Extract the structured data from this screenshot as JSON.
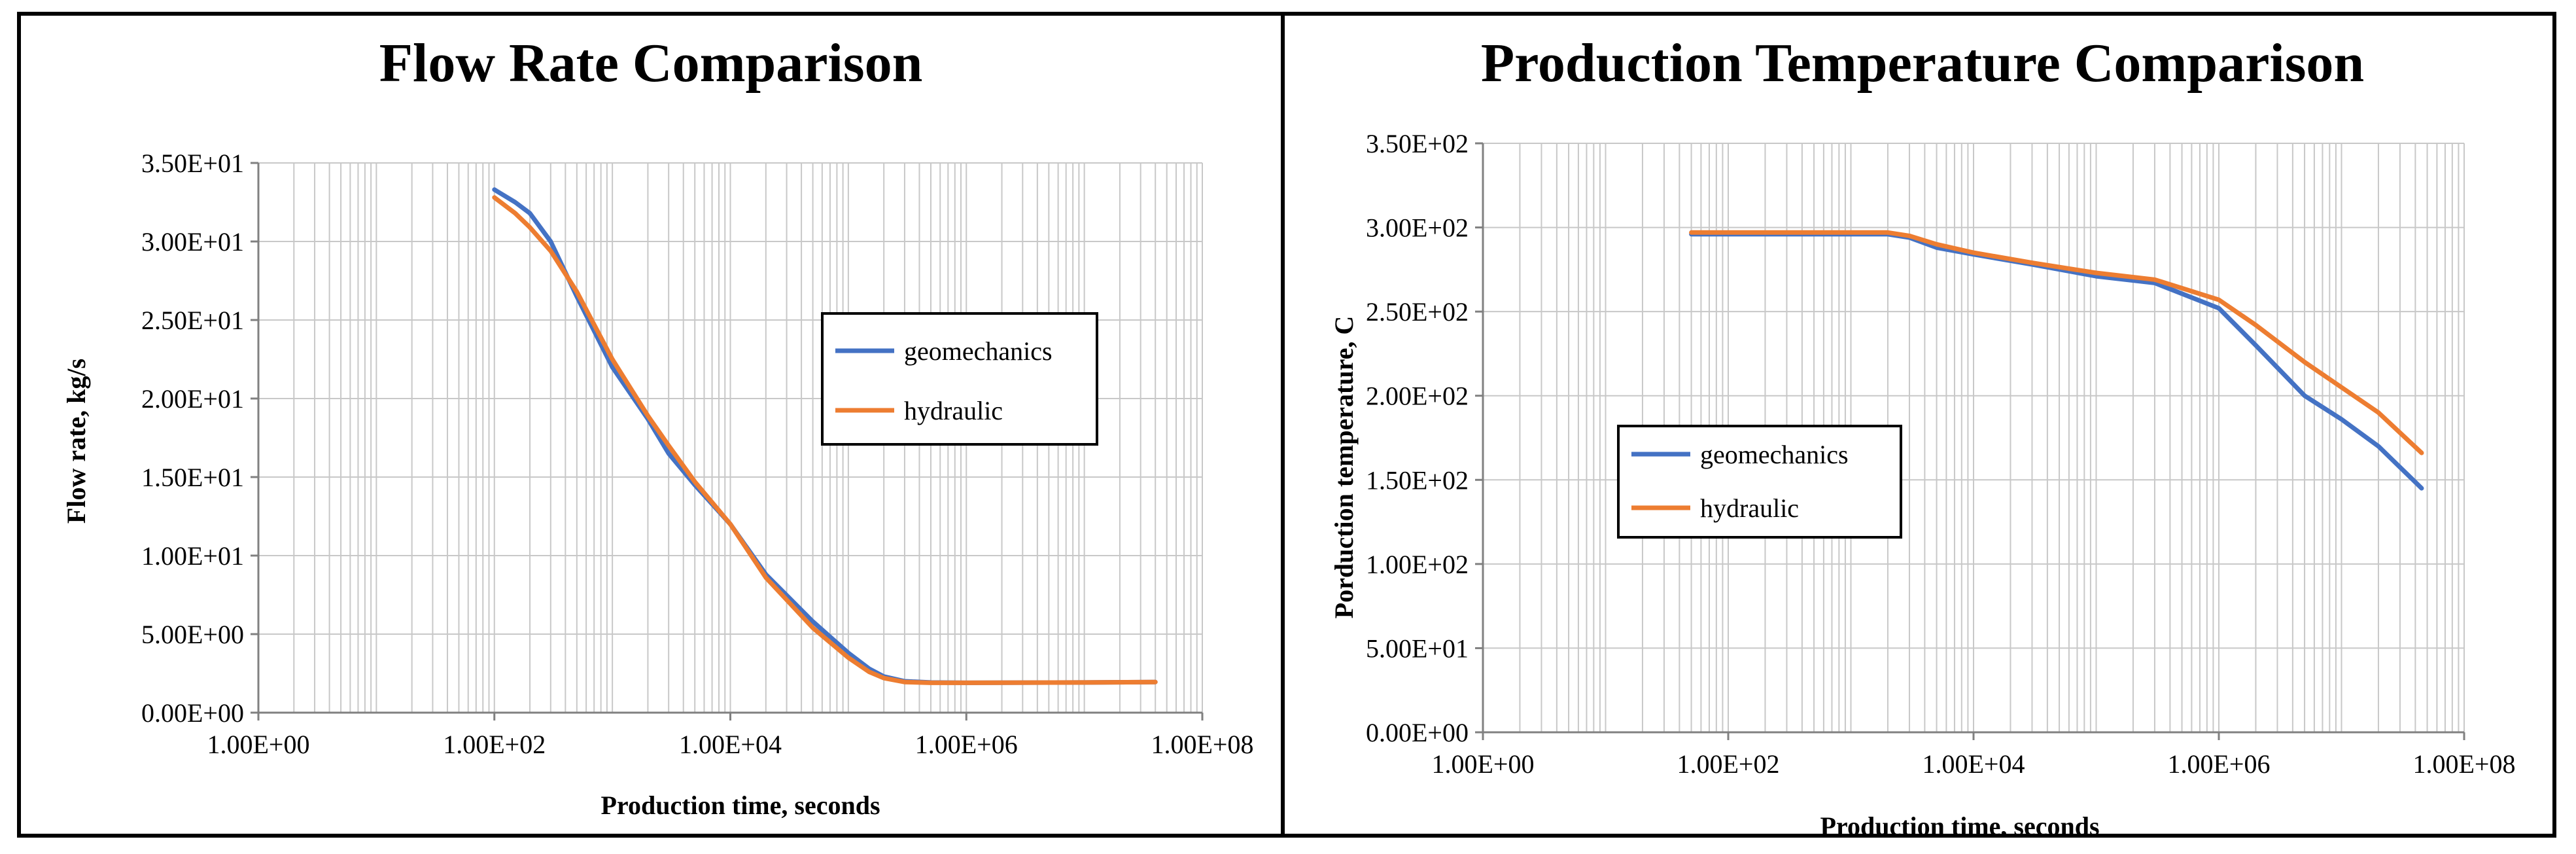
{
  "colors": {
    "geomechanics": "#4472C4",
    "hydraulic": "#ED7D31",
    "grid": "#c8c8c8",
    "axis": "#808080"
  },
  "chart_data": [
    {
      "type": "line",
      "title": "Flow Rate Comparison",
      "xlabel": "Production time, seconds",
      "ylabel": "Flow rate, kg/s",
      "xscale": "log",
      "xlim": [
        1,
        100000000
      ],
      "ylim": [
        0,
        35
      ],
      "x_tick_labels": [
        "1.00E+00",
        "1.00E+02",
        "1.00E+04",
        "1.00E+06",
        "1.00E+08"
      ],
      "y_tick_labels": [
        "0.00E+00",
        "5.00E+00",
        "1.00E+01",
        "1.50E+01",
        "2.00E+01",
        "2.50E+01",
        "3.00E+01",
        "3.50E+01"
      ],
      "legend_position": "center-right",
      "series": [
        {
          "name": "geomechanics",
          "color_key": "geomechanics",
          "x": [
            100,
            150,
            200,
            300,
            500,
            1000,
            2000,
            3000,
            5000,
            10000,
            20000,
            50000,
            100000,
            150000,
            200000,
            300000,
            500000,
            1000000,
            10000000,
            40000000
          ],
          "y": [
            33.3,
            32.5,
            31.8,
            30.0,
            26.5,
            22.0,
            18.7,
            16.5,
            14.5,
            12.0,
            8.8,
            5.8,
            3.8,
            2.8,
            2.3,
            2.0,
            1.92,
            1.9,
            1.92,
            1.95
          ]
        },
        {
          "name": "hydraulic",
          "color_key": "hydraulic",
          "x": [
            100,
            150,
            200,
            300,
            500,
            1000,
            2000,
            3000,
            5000,
            10000,
            20000,
            50000,
            100000,
            150000,
            200000,
            300000,
            500000,
            1000000,
            10000000,
            40000000
          ],
          "y": [
            32.8,
            31.8,
            30.9,
            29.4,
            26.8,
            22.5,
            18.9,
            17.0,
            14.7,
            12.0,
            8.6,
            5.4,
            3.5,
            2.6,
            2.2,
            1.95,
            1.9,
            1.9,
            1.92,
            1.95
          ]
        }
      ]
    },
    {
      "type": "line",
      "title": "Production Temperature Comparison",
      "xlabel": "Production time, seconds",
      "ylabel": "Porduction temperature, C",
      "xscale": "log",
      "xlim": [
        1,
        100000000
      ],
      "ylim": [
        0,
        350
      ],
      "x_tick_labels": [
        "1.00E+00",
        "1.00E+02",
        "1.00E+04",
        "1.00E+06",
        "1.00E+08"
      ],
      "y_tick_labels": [
        "0.00E+00",
        "5.00E+01",
        "1.00E+02",
        "1.50E+02",
        "2.00E+02",
        "2.50E+02",
        "3.00E+02",
        "3.50E+02"
      ],
      "legend_position": "center-left",
      "series": [
        {
          "name": "geomechanics",
          "color_key": "geomechanics",
          "x": [
            50,
            100,
            500,
            1000,
            2000,
            3000,
            5000,
            10000,
            30000,
            100000,
            300000,
            1000000,
            2000000,
            5000000,
            10000000,
            20000000,
            45000000
          ],
          "y": [
            296,
            296,
            296,
            296,
            296,
            294,
            288,
            284,
            278,
            271,
            267,
            252,
            230,
            200,
            186,
            170,
            145
          ]
        },
        {
          "name": "hydraulic",
          "color_key": "hydraulic",
          "x": [
            50,
            100,
            500,
            1000,
            2000,
            3000,
            5000,
            10000,
            30000,
            100000,
            300000,
            1000000,
            2000000,
            5000000,
            10000000,
            20000000,
            45000000
          ],
          "y": [
            297,
            297,
            297,
            297,
            297,
            295,
            290,
            285,
            279,
            273,
            269,
            257,
            242,
            220,
            205,
            190,
            166
          ]
        }
      ]
    }
  ]
}
